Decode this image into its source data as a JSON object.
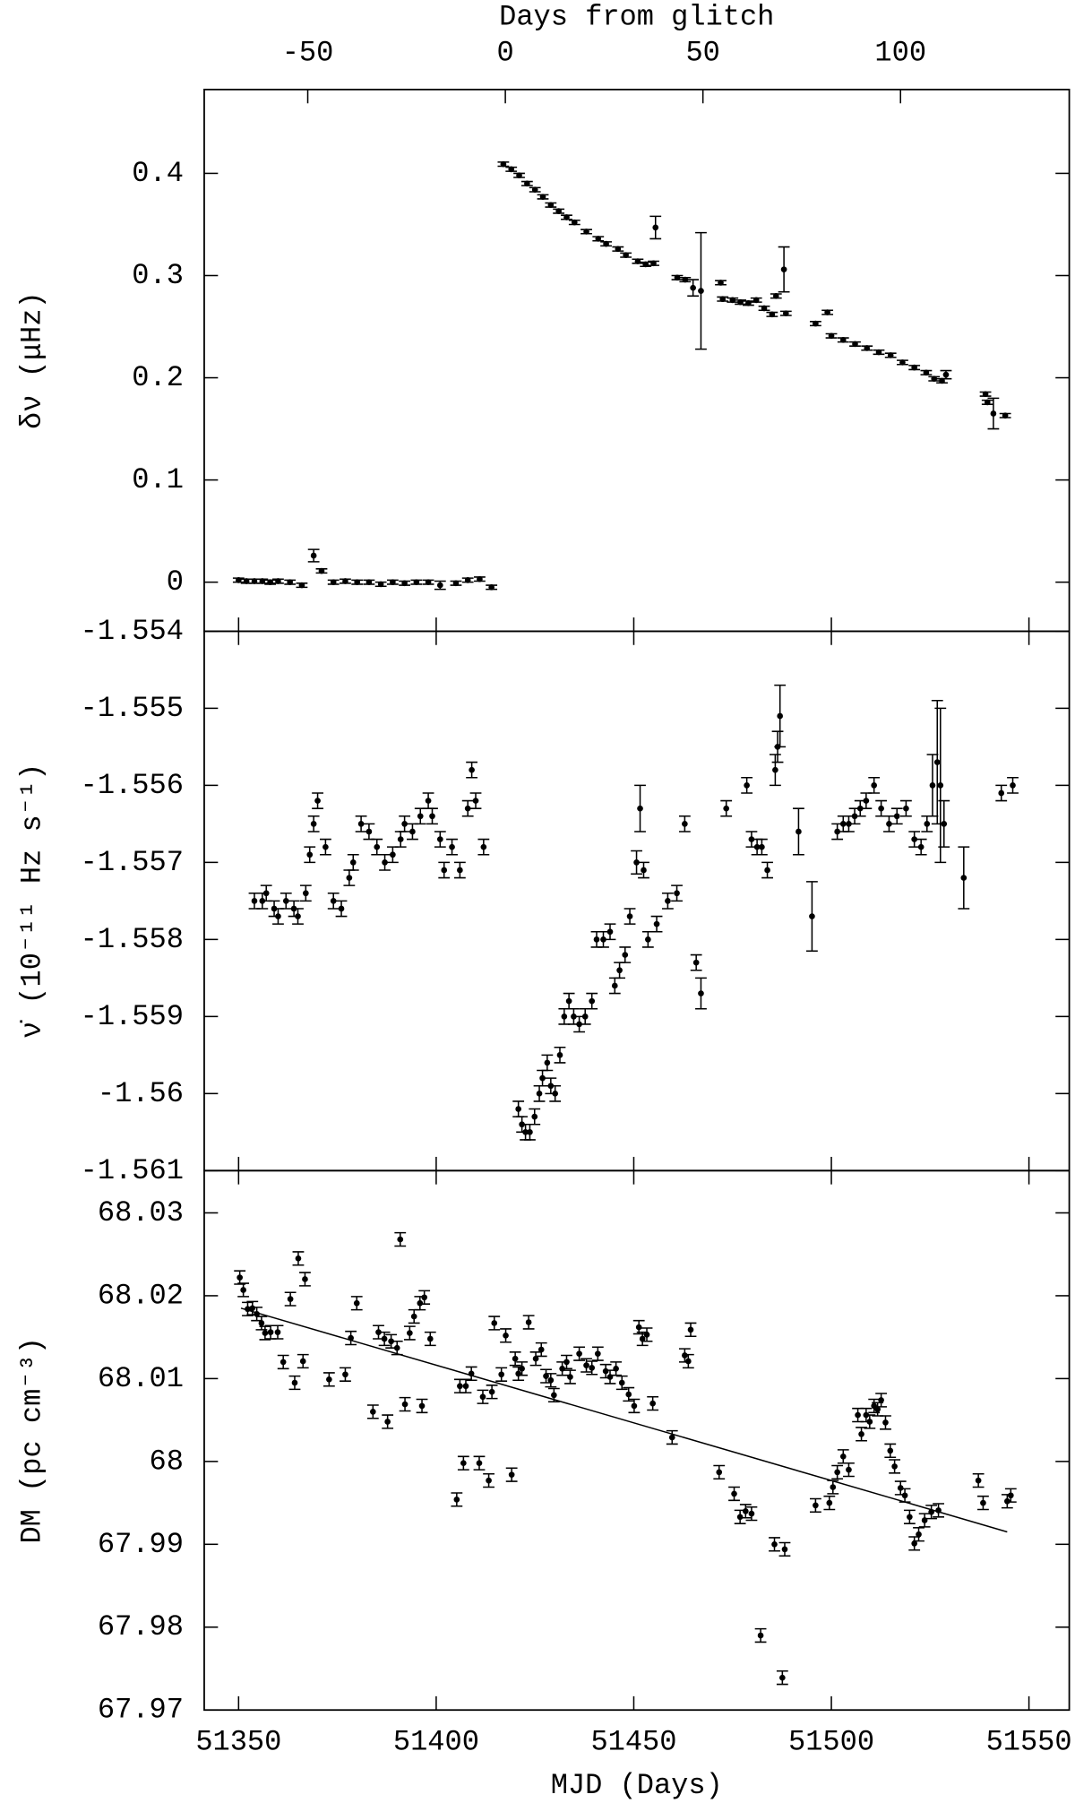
{
  "chart_data": [
    {
      "type": "scatter",
      "ylabel": "δν (μHz)",
      "x2label": "Days from glitch",
      "x2lim": [
        -76.2,
        142.7
      ],
      "x2ticks": [
        -50,
        0,
        50,
        100
      ],
      "ylim": [
        -0.048,
        0.482
      ],
      "yticks": [
        0,
        0.1,
        0.2,
        0.3,
        0.4
      ],
      "color": "#000000",
      "x": [
        51350,
        51352,
        51354,
        51356,
        51358,
        51360,
        51363,
        51366,
        51369,
        51371,
        51374,
        51377,
        51380,
        51383,
        51386,
        51389,
        51392,
        51395,
        51398,
        51401,
        51405,
        51408,
        51411,
        51414,
        51417,
        51419,
        51421,
        51423,
        51425,
        51427,
        51429,
        51431,
        51433,
        51435,
        51438,
        51441,
        51443,
        51446,
        51448,
        51451,
        51453,
        51455,
        51455.5,
        51461,
        51463,
        51465,
        51467,
        51472,
        51472.5,
        51475,
        51477,
        51479,
        51481,
        51483,
        51485,
        51486,
        51488,
        51488.5,
        51496,
        51499,
        51500,
        51503,
        51506,
        51509,
        51512,
        51515,
        51518,
        51521,
        51524,
        51526,
        51528,
        51529,
        51539,
        51539.5,
        51541,
        51544
      ],
      "values": [
        0.002,
        0.001,
        0.001,
        0.001,
        0,
        0.001,
        0,
        -0.003,
        0.026,
        0.011,
        0,
        0.001,
        0,
        0,
        -0.002,
        0,
        -0.001,
        0,
        0,
        -0.003,
        -0.001,
        0.002,
        0.003,
        -0.005,
        0.409,
        0.404,
        0.398,
        0.39,
        0.384,
        0.377,
        0.369,
        0.363,
        0.357,
        0.352,
        0.343,
        0.336,
        0.331,
        0.326,
        0.32,
        0.314,
        0.311,
        0.312,
        0.347,
        0.298,
        0.296,
        0.288,
        0.285,
        0.293,
        0.277,
        0.276,
        0.274,
        0.273,
        0.276,
        0.268,
        0.262,
        0.28,
        0.306,
        0.263,
        0.253,
        0.264,
        0.241,
        0.237,
        0.233,
        0.229,
        0.225,
        0.222,
        0.215,
        0.21,
        0.205,
        0.199,
        0.197,
        0.203,
        0.184,
        0.176,
        0.165,
        0.163
      ],
      "errors": [
        0.002,
        0.002,
        0.002,
        0.002,
        0.002,
        0.002,
        0.002,
        0.002,
        0.006,
        0.002,
        0.002,
        0.002,
        0.002,
        0.002,
        0.002,
        0.002,
        0.002,
        0.002,
        0.002,
        0.004,
        0.002,
        0.002,
        0.002,
        0.002,
        0.002,
        0.002,
        0.002,
        0.002,
        0.002,
        0.002,
        0.002,
        0.002,
        0.002,
        0.002,
        0.002,
        0.002,
        0.002,
        0.002,
        0.002,
        0.002,
        0.002,
        0.002,
        0.011,
        0.002,
        0.002,
        0.008,
        0.057,
        0.002,
        0.002,
        0.002,
        0.002,
        0.002,
        0.002,
        0.002,
        0.002,
        0.002,
        0.022,
        0.002,
        0.002,
        0.002,
        0.002,
        0.002,
        0.002,
        0.002,
        0.002,
        0.002,
        0.002,
        0.002,
        0.002,
        0.002,
        0.002,
        0.004,
        0.002,
        0.002,
        0.015,
        0.002
      ]
    },
    {
      "type": "scatter",
      "ylabel": "ν̇ (10⁻¹¹ Hz s⁻¹)",
      "ylim": [
        -1.561,
        -1.554
      ],
      "yticks": [
        -1.561,
        -1.56,
        -1.559,
        -1.558,
        -1.557,
        -1.556,
        -1.555,
        -1.554
      ],
      "color": "#000000",
      "x": [
        51354,
        51356,
        51357,
        51359,
        51360,
        51362,
        51364,
        51365,
        51367,
        51368,
        51369,
        51370,
        51372,
        51374,
        51376,
        51378,
        51379,
        51381,
        51383,
        51385,
        51387,
        51389,
        51391,
        51392,
        51394,
        51396,
        51398,
        51399,
        51401,
        51402,
        51404,
        51406,
        51408,
        51409,
        51410,
        51412,
        51420.8,
        51421.7,
        51422.6,
        51423.7,
        51424.9,
        51426.1,
        51426.9,
        51428.1,
        51429,
        51430.1,
        51431.3,
        51432.4,
        51433.6,
        51434.8,
        51436.2,
        51437.7,
        51439.4,
        51440.6,
        51442.3,
        51444,
        51445.2,
        51446.4,
        51447.8,
        51449,
        51450.7,
        51451.6,
        51452.5,
        51453.6,
        51455.8,
        51458.6,
        51460.9,
        51462.9,
        51465.8,
        51467,
        51473.4,
        51478.6,
        51479.8,
        51481.2,
        51482.4,
        51483.8,
        51485.8,
        51486.4,
        51487,
        51491.7,
        51495.1,
        51501.5,
        51503,
        51504.4,
        51505.9,
        51507.3,
        51508.8,
        51510.8,
        51512.6,
        51514.6,
        51516.6,
        51518.9,
        51521,
        51522.7,
        51524.2,
        51525.6,
        51526.8,
        51527.6,
        51528.5,
        51533.5,
        51543,
        51545.9
      ],
      "values": [
        -1.5575,
        -1.5575,
        -1.5574,
        -1.5576,
        -1.5577,
        -1.5575,
        -1.5576,
        -1.5577,
        -1.5574,
        -1.5569,
        -1.5565,
        -1.5562,
        -1.5568,
        -1.5575,
        -1.5576,
        -1.5572,
        -1.557,
        -1.5565,
        -1.5566,
        -1.5568,
        -1.557,
        -1.5569,
        -1.5567,
        -1.5565,
        -1.5566,
        -1.5564,
        -1.5562,
        -1.5564,
        -1.5567,
        -1.5571,
        -1.5568,
        -1.5571,
        -1.5563,
        -1.5558,
        -1.5562,
        -1.5568,
        -1.5602,
        -1.5604,
        -1.5605,
        -1.5605,
        -1.5603,
        -1.56,
        -1.5598,
        -1.5596,
        -1.5599,
        -1.56,
        -1.5595,
        -1.559,
        -1.5588,
        -1.559,
        -1.5591,
        -1.559,
        -1.5588,
        -1.558,
        -1.558,
        -1.5579,
        -1.5586,
        -1.5584,
        -1.5582,
        -1.5577,
        -1.557,
        -1.5563,
        -1.5571,
        -1.558,
        -1.5578,
        -1.5575,
        -1.5574,
        -1.5565,
        -1.5583,
        -1.5587,
        -1.5563,
        -1.556,
        -1.5567,
        -1.5568,
        -1.5568,
        -1.5571,
        -1.5558,
        -1.5555,
        -1.5551,
        -1.5566,
        -1.5577,
        -1.5566,
        -1.5565,
        -1.5565,
        -1.5564,
        -1.5563,
        -1.5562,
        -1.556,
        -1.5563,
        -1.5565,
        -1.5564,
        -1.5563,
        -1.5567,
        -1.5568,
        -1.5565,
        -1.556,
        -1.5557,
        -1.556,
        -1.5565,
        -1.5572,
        -1.5561,
        -1.556
      ],
      "errors": [
        0.0001,
        0.0001,
        0.0001,
        0.0001,
        0.0001,
        0.0001,
        0.0001,
        0.0001,
        0.0001,
        0.0001,
        0.0001,
        0.0001,
        0.0001,
        0.0001,
        0.0001,
        0.0001,
        0.0001,
        0.0001,
        0.0001,
        0.0001,
        0.0001,
        0.0001,
        0.0001,
        0.0001,
        0.0001,
        0.0001,
        0.0001,
        0.0001,
        0.0001,
        0.0001,
        0.0001,
        0.0001,
        0.0001,
        0.0001,
        0.0001,
        0.0001,
        0.0001,
        0.0001,
        0.0001,
        0.0001,
        0.0001,
        0.0001,
        0.0001,
        0.0001,
        0.0001,
        0.0001,
        0.0001,
        0.0001,
        0.0001,
        0.0001,
        0.0001,
        0.0001,
        0.0001,
        0.0001,
        0.0001,
        0.0001,
        0.0001,
        0.0001,
        0.0001,
        0.0001,
        0.00015,
        0.0003,
        0.0001,
        0.0001,
        0.0001,
        0.0001,
        0.0001,
        0.0001,
        0.0001,
        0.0002,
        0.0001,
        0.0001,
        0.0001,
        0.0001,
        0.0001,
        0.0001,
        0.0002,
        0.0002,
        0.0004,
        0.0003,
        0.00045,
        0.0001,
        0.0001,
        0.0001,
        0.0001,
        0.0001,
        0.0001,
        0.0001,
        0.0001,
        0.0001,
        0.0001,
        0.0001,
        0.0001,
        0.0001,
        0.0001,
        0.0004,
        0.0008,
        0.001,
        0.0003,
        0.0004,
        0.0001,
        0.0001
      ]
    },
    {
      "type": "scatter",
      "ylabel": "DM (pc cm⁻³)",
      "xlabel": "MJD (Days)",
      "xlim": [
        51341.3,
        51560.2
      ],
      "xticks": [
        51350,
        51400,
        51450,
        51500,
        51550
      ],
      "ylim": [
        67.97,
        68.0351
      ],
      "yticks": [
        67.97,
        67.98,
        67.99,
        68,
        68.01,
        68.02,
        68.03
      ],
      "color": "#000000",
      "error": 0.0008,
      "fit": {
        "x": [
          51350.6,
          51544.5
        ],
        "y": [
          68.0185,
          67.9915
        ]
      },
      "x": [
        51350.3,
        51351.2,
        51352.3,
        51353.5,
        51354.6,
        51355.8,
        51356.7,
        51358.1,
        51359.9,
        51361.3,
        51363.1,
        51364.2,
        51365.1,
        51366.3,
        51366.8,
        51372.9,
        51377,
        51378.4,
        51379.9,
        51384,
        51385.4,
        51386.9,
        51387.7,
        51388.6,
        51390.1,
        51390.9,
        51392.1,
        51393.3,
        51394.4,
        51395.9,
        51396.4,
        51397,
        51398.5,
        51405.2,
        51406,
        51407.5,
        51406.9,
        51408.9,
        51410.9,
        51411.8,
        51413.3,
        51414.1,
        51414.7,
        51416.5,
        51417.6,
        51419.1,
        51420,
        51420.8,
        51421.7,
        51423.4,
        51425.2,
        51426.6,
        51427.8,
        51429,
        51429.8,
        51431.9,
        51433,
        51433.9,
        51436.2,
        51438,
        51439.4,
        51440.9,
        51442.9,
        51444,
        51445.5,
        51447,
        51448.7,
        51450.1,
        51451.3,
        51452.2,
        51453.3,
        51454.8,
        51459.7,
        51462.9,
        51463.8,
        51464.4,
        51471.6,
        51475.4,
        51476.9,
        51478.3,
        51479.8,
        51482.1,
        51485.6,
        51487.6,
        51488.2,
        51496,
        51499.5,
        51500.4,
        51501.5,
        51503,
        51504.4,
        51506.7,
        51507.6,
        51508.8,
        51509.7,
        51510.8,
        51511.7,
        51512.6,
        51513.7,
        51514.9,
        51516,
        51517.5,
        51518.6,
        51519.8,
        51521,
        51522.1,
        51523.6,
        51525.3,
        51527.1,
        51537.2,
        51538.4,
        51544.5,
        51545.4
      ],
      "values": [
        68.0222,
        68.0207,
        68.0184,
        68.0185,
        68.0178,
        68.0167,
        68.0155,
        68.0156,
        68.0156,
        68.012,
        68.0196,
        68.0095,
        68.0245,
        68.0121,
        68.022,
        68.0099,
        68.0105,
        68.0149,
        68.0191,
        68.006,
        68.0156,
        68.0148,
        68.0048,
        68.0145,
        68.0137,
        68.0268,
        68.0069,
        68.0155,
        68.0175,
        68.0191,
        68.0067,
        68.0198,
        68.0148,
        67.9954,
        68.0091,
        68.0091,
        67.9998,
        68.0106,
        67.9998,
        68.0078,
        67.9977,
        68.0084,
        68.0167,
        68.0105,
        68.0152,
        67.9984,
        68.0124,
        68.0106,
        68.0112,
        68.0168,
        68.0124,
        68.0135,
        68.0103,
        68.0098,
        68.008,
        68.0112,
        68.012,
        68.0102,
        68.013,
        68.0116,
        68.0113,
        68.013,
        68.0109,
        68.0102,
        68.0112,
        68.0095,
        68.0081,
        68.0067,
        68.0162,
        68.0148,
        68.0153,
        68.007,
        68.0029,
        68.0128,
        68.0121,
        68.0159,
        67.9987,
        67.9961,
        67.9933,
        67.994,
        67.9937,
        67.979,
        67.99,
        67.9739,
        67.9894,
        67.9947,
        67.995,
        67.9969,
        67.9987,
        68.0006,
        67.999,
        68.0056,
        68.0033,
        68.0056,
        68.0048,
        68.0067,
        68.0063,
        68.0074,
        68.0047,
        68.0013,
        67.9994,
        67.9968,
        67.9959,
        67.9933,
        67.9901,
        67.9912,
        67.9929,
        67.9939,
        67.9941,
        67.9977,
        67.995,
        67.9952,
        67.9959
      ]
    }
  ]
}
